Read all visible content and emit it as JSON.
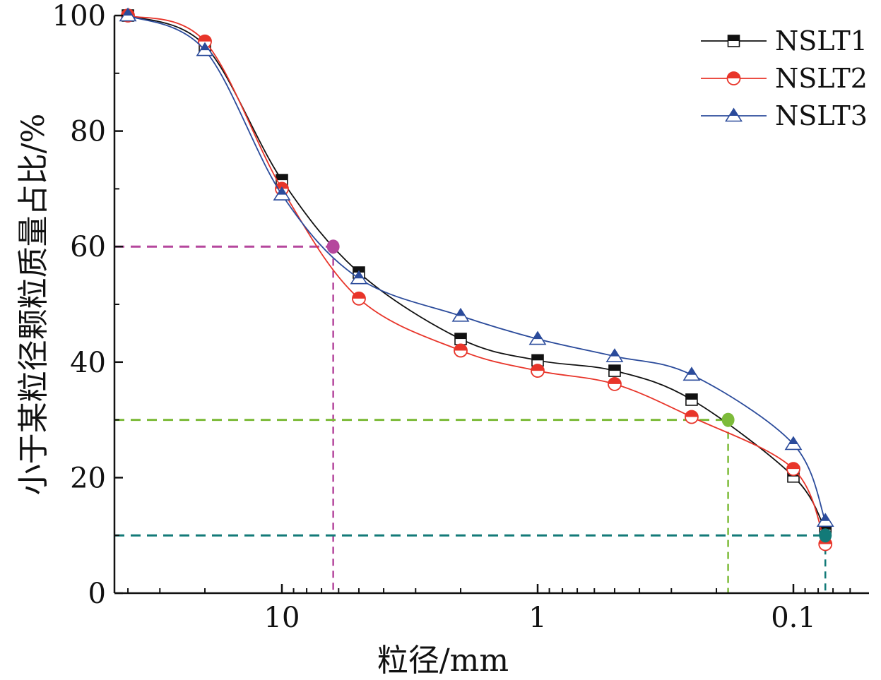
{
  "chart_data": {
    "type": "line",
    "title": "",
    "xlabel": "粒径/mm",
    "ylabel": "小于某粒径颗粒质量占比/%",
    "x_scale": "log",
    "x_reversed": true,
    "xlim": [
      40,
      0.06
    ],
    "ylim": [
      0,
      100
    ],
    "x_ticks": [
      {
        "value": 10,
        "label": "10"
      },
      {
        "value": 1,
        "label": "1"
      },
      {
        "value": 0.1,
        "label": "0.1"
      }
    ],
    "y_ticks": [
      {
        "value": 0,
        "label": "0"
      },
      {
        "value": 20,
        "label": "20"
      },
      {
        "value": 40,
        "label": "40"
      },
      {
        "value": 60,
        "label": "60"
      },
      {
        "value": 80,
        "label": "80"
      },
      {
        "value": 100,
        "label": "100"
      }
    ],
    "grid": false,
    "legend_position": "top-right",
    "x": [
      40,
      20,
      10,
      5,
      2,
      1,
      0.5,
      0.25,
      0.1,
      0.075
    ],
    "series": [
      {
        "name": "NSLT1",
        "color": "#111111",
        "marker": "square-half",
        "values": [
          100,
          94.8,
          71.5,
          55.5,
          44.0,
          40.3,
          38.5,
          33.5,
          20.2,
          11.0
        ]
      },
      {
        "name": "NSLT2",
        "color": "#e8352a",
        "marker": "circle-half",
        "values": [
          100,
          95.5,
          70.0,
          51.0,
          42.0,
          38.5,
          36.2,
          30.5,
          21.5,
          8.5
        ]
      },
      {
        "name": "NSLT3",
        "color": "#2b4b9b",
        "marker": "triangle-half",
        "values": [
          100,
          94.0,
          69.0,
          54.5,
          48.0,
          44.0,
          41.0,
          37.8,
          25.8,
          12.5
        ]
      }
    ],
    "reference_lines": [
      {
        "y": 60,
        "x": 6.3,
        "color": "#b5479d"
      },
      {
        "y": 30,
        "x": 0.18,
        "color": "#7dbb3a"
      },
      {
        "y": 10,
        "x": 0.075,
        "color": "#127a78"
      }
    ]
  }
}
